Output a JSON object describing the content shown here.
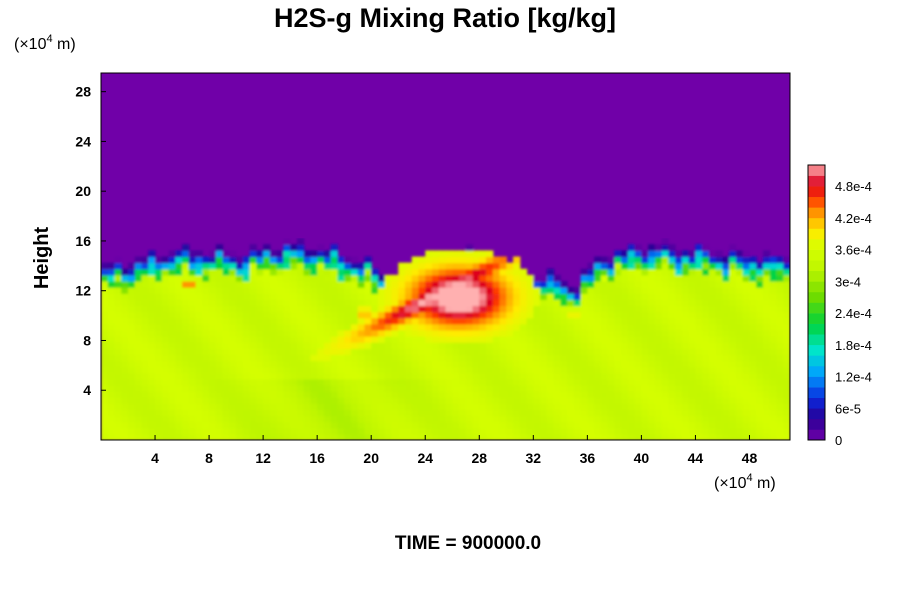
{
  "chart_data": {
    "type": "heatmap",
    "title": "H2S-g Mixing Ratio [kg/kg]",
    "ylabel": "Height",
    "x_unit": "(×10",
    "x_unit_exp": "4",
    "x_unit_tail": " m)",
    "y_unit": "(×10",
    "y_unit_exp": "4",
    "y_unit_tail": " m)",
    "xlim": [
      0,
      51
    ],
    "ylim": [
      0,
      29.5
    ],
    "x_ticks": [
      4,
      8,
      12,
      16,
      20,
      24,
      28,
      32,
      36,
      40,
      44,
      48
    ],
    "y_ticks": [
      4,
      8,
      12,
      16,
      20,
      24,
      28
    ],
    "colorbar": {
      "range": [
        0,
        0.00052
      ],
      "ticks": [
        {
          "value": 0,
          "label": "0"
        },
        {
          "value": 6e-05,
          "label": "6e-5"
        },
        {
          "value": 0.00012,
          "label": "1.2e-4"
        },
        {
          "value": 0.00018,
          "label": "1.8e-4"
        },
        {
          "value": 0.00024,
          "label": "2.4e-4"
        },
        {
          "value": 0.0003,
          "label": "3e-4"
        },
        {
          "value": 0.00036,
          "label": "3.6e-4"
        },
        {
          "value": 0.00042,
          "label": "4.2e-4"
        },
        {
          "value": 0.00048,
          "label": "4.8e-4"
        }
      ],
      "levels": 26
    },
    "field": {
      "top_value": 0,
      "lower_layer_value": 0.00036,
      "layer_top_profile": [
        [
          0,
          13.5
        ],
        [
          3,
          14.2
        ],
        [
          6,
          15.0
        ],
        [
          10,
          14.6
        ],
        [
          14,
          15.4
        ],
        [
          17,
          15.0
        ],
        [
          20,
          13.8
        ],
        [
          22,
          12.0
        ],
        [
          24,
          14.0
        ],
        [
          27,
          15.2
        ],
        [
          29,
          13.6
        ],
        [
          31,
          12.5
        ],
        [
          33,
          13.0
        ],
        [
          35,
          12.0
        ],
        [
          37,
          14.5
        ],
        [
          40,
          15.3
        ],
        [
          44,
          15.0
        ],
        [
          48,
          14.6
        ],
        [
          51,
          14.2
        ]
      ],
      "plume_peak_value": 0.00052,
      "plume_centre": [
        26.5,
        11.5
      ]
    },
    "time_label": "TIME = 900000.0",
    "colors": {
      "background_field": "#7000a8",
      "lower_layer": "#d6ff00",
      "plume_peak": "#ffb0b0"
    }
  }
}
